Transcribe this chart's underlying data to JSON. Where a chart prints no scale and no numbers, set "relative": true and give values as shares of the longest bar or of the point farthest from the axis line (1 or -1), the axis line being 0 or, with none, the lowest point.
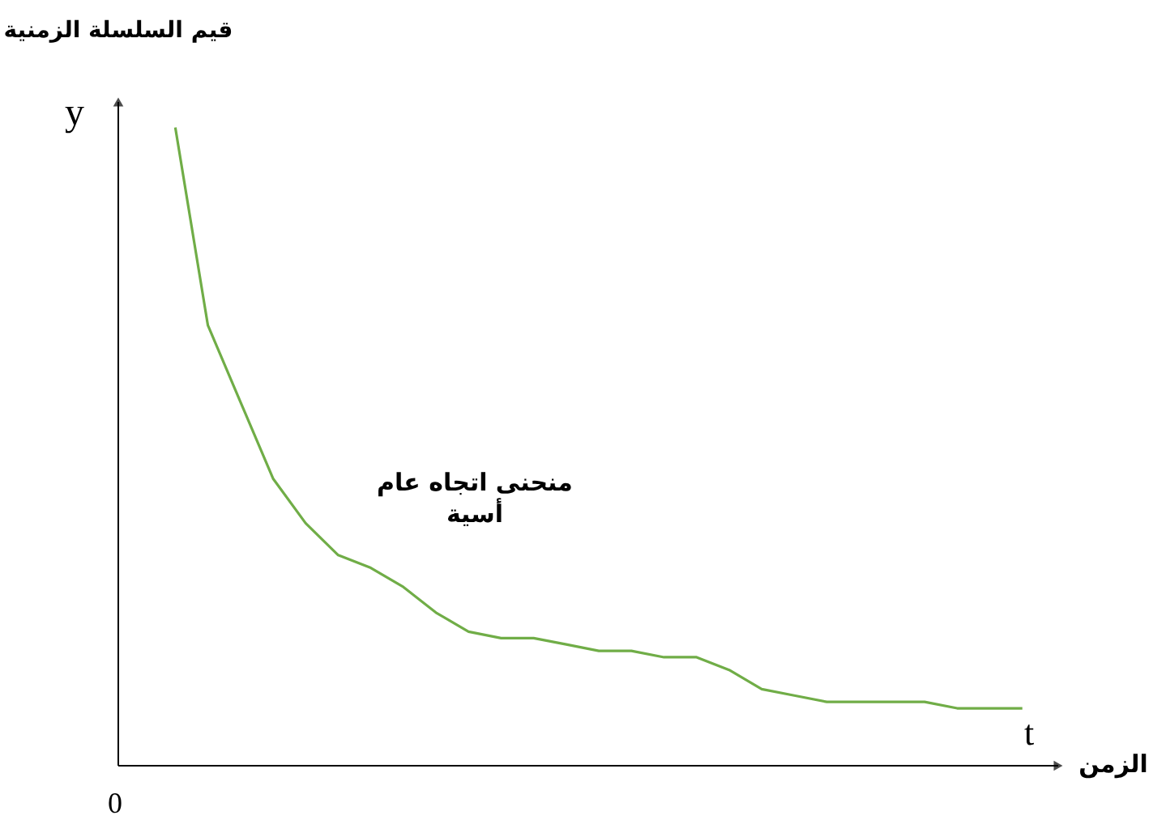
{
  "chart_data": {
    "type": "line",
    "relative": true,
    "ylabel": "قيم السلسلة الزمنية",
    "xlabel": "الزمن",
    "annotations": [
      "y",
      "t",
      "0",
      "منحنى اتجاه عام\nأسية"
    ],
    "categories": [
      null,
      null,
      null,
      null,
      null,
      null,
      null,
      null,
      null,
      null,
      null,
      null,
      null,
      null,
      null,
      null,
      null,
      null,
      null,
      null,
      null,
      null,
      null,
      null,
      null,
      null,
      null
    ],
    "series": [
      {
        "color": "#70ad47",
        "values": [
          1,
          0.69,
          0.57,
          0.45,
          0.38,
          0.33,
          0.31,
          0.28,
          0.24,
          0.21,
          0.2,
          0.2,
          0.19,
          0.18,
          0.18,
          0.17,
          0.17,
          0.15,
          0.12,
          0.11,
          0.1,
          0.1,
          0.1,
          0.1,
          0.09,
          0.09,
          0.09
        ]
      }
    ],
    "marker": "none",
    "line_style": "solid"
  }
}
